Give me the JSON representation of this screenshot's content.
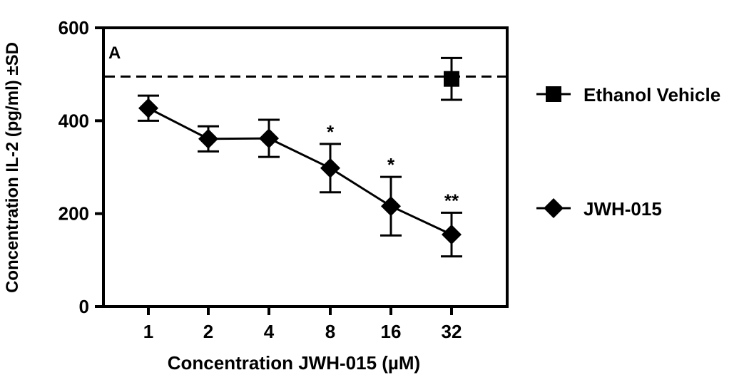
{
  "chart_data": {
    "type": "line",
    "panel_label": "A",
    "xlabel": "Concentration JWH-015 (µM)",
    "ylabel": "Concentration IL-2 (pg/ml) ±SD",
    "x_tick_labels": [
      "1",
      "2",
      "4",
      "8",
      "16",
      "32"
    ],
    "ylim": [
      0,
      600
    ],
    "y_ticks": [
      0,
      200,
      400,
      600
    ],
    "y_tick_labels": [
      "0",
      "200",
      "400",
      "600"
    ],
    "legend_position": "right",
    "series": [
      {
        "name": "Ethanol Vehicle",
        "marker": "square",
        "x": [
          "32"
        ],
        "values": [
          490
        ],
        "error": [
          45
        ],
        "reference_line": 495
      },
      {
        "name": "JWH-015",
        "marker": "diamond",
        "x": [
          "1",
          "2",
          "4",
          "8",
          "16",
          "32"
        ],
        "values": [
          427,
          361,
          362,
          298,
          216,
          155
        ],
        "error": [
          27,
          27,
          40,
          52,
          63,
          47
        ],
        "significance": [
          "",
          "",
          "",
          "*",
          "*",
          "**"
        ]
      }
    ],
    "grid": false
  }
}
